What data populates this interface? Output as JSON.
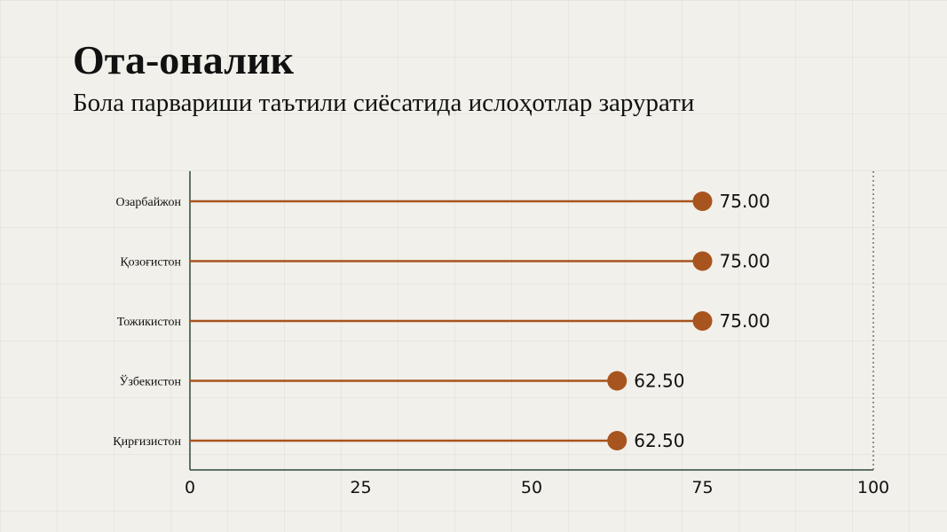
{
  "header": {
    "title": "Ота-оналик",
    "subtitle": "Бола парвариши таътили сиёсатида ислоҳотлар зарурати"
  },
  "colors": {
    "background": "#f1f0ea",
    "lollipop": "#a8541f",
    "axis": "#2e4a3c",
    "reference_line": "#555555"
  },
  "chart_data": {
    "type": "lollipop",
    "orientation": "horizontal",
    "categories": [
      "Озарбайжон",
      "Қозоғистон",
      "Тожикистон",
      "Ўзбекистон",
      "Қирғизистон"
    ],
    "values": [
      75,
      75,
      75,
      62.5,
      62.5
    ],
    "value_labels": [
      "75.00",
      "75.00",
      "75.00",
      "62.50",
      "62.50"
    ],
    "xlim": [
      0,
      100
    ],
    "xticks": [
      0,
      25,
      50,
      75,
      100
    ],
    "xtick_labels": [
      "0",
      "25",
      "50",
      "75",
      "100"
    ],
    "reference_line_at": 100,
    "grid": false
  }
}
